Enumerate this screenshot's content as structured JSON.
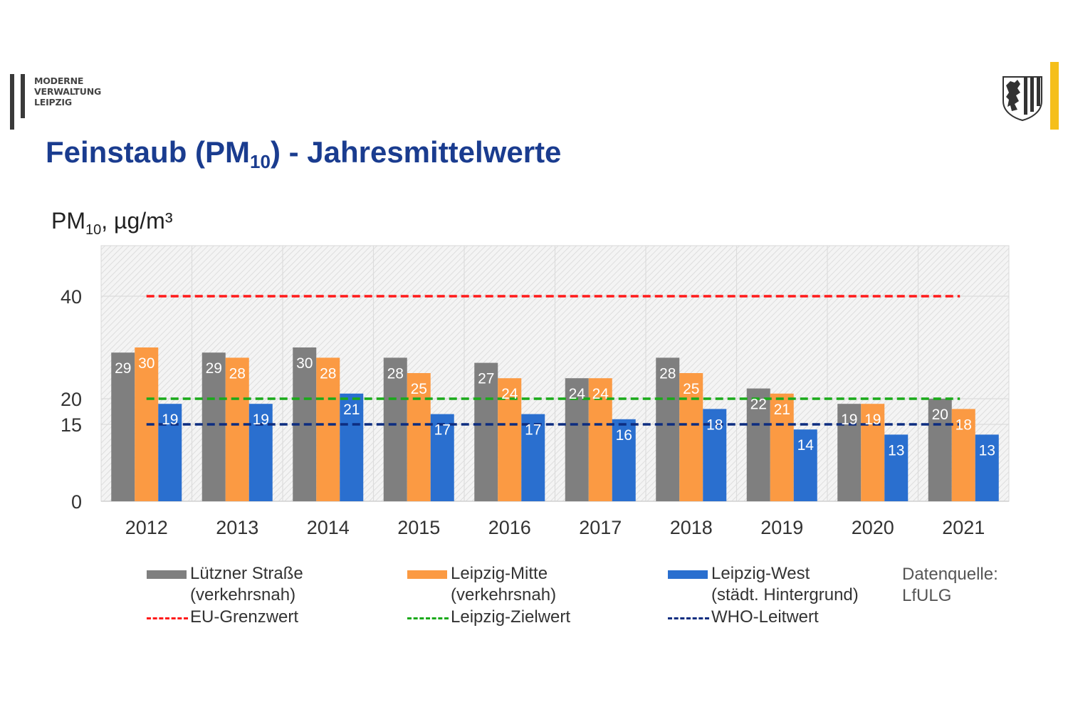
{
  "logo": {
    "lines": [
      "MODERNE",
      "VERWALTUNG",
      "LEIPZIG"
    ]
  },
  "crest_icon": "leipzig-coat-of-arms-icon",
  "title": {
    "prefix": "Feinstaub (PM",
    "sub": "10",
    "suffix": ") - Jahresmittelwerte"
  },
  "ylabel": {
    "prefix": "PM",
    "sub": "10",
    "suffix": ", µg/m³"
  },
  "colors": {
    "luetzner": "#7f7f7f",
    "mitte": "#fb9a43",
    "west": "#2a6fcf",
    "eu": "#ff1a1a",
    "ziel": "#1aaa1a",
    "who": "#0d2d80",
    "title": "#1a3c8f",
    "accent_yellow": "#f5bf1a"
  },
  "chart_data": {
    "type": "bar",
    "title": "Feinstaub (PM10) - Jahresmittelwerte",
    "xlabel": "",
    "ylabel": "PM10, µg/m³",
    "ylim": [
      0,
      50
    ],
    "yticks": [
      0,
      15,
      20,
      40
    ],
    "categories": [
      "2012",
      "2013",
      "2014",
      "2015",
      "2016",
      "2017",
      "2018",
      "2019",
      "2020",
      "2021"
    ],
    "series": [
      {
        "name": "Lützner Straße (verkehrsnah)",
        "key": "luetzner",
        "values": [
          29,
          29,
          30,
          28,
          27,
          24,
          28,
          22,
          19,
          20
        ]
      },
      {
        "name": "Leipzig-Mitte (verkehrsnah)",
        "key": "mitte",
        "values": [
          30,
          28,
          28,
          25,
          24,
          24,
          25,
          21,
          19,
          18
        ]
      },
      {
        "name": "Leipzig-West (städt. Hintergrund)",
        "key": "west",
        "values": [
          19,
          19,
          21,
          17,
          17,
          16,
          18,
          14,
          13,
          13
        ]
      }
    ],
    "reference_lines": [
      {
        "name": "EU-Grenzwert",
        "key": "eu",
        "value": 40
      },
      {
        "name": "Leipzig-Zielwert",
        "key": "ziel",
        "value": 20
      },
      {
        "name": "WHO-Leitwert",
        "key": "who",
        "value": 15
      }
    ],
    "grid": true,
    "legend": "bottom"
  },
  "legend": {
    "luetzner": {
      "line1": "Lützner Straße",
      "line2": "(verkehrsnah)"
    },
    "mitte": {
      "line1": "Leipzig-Mitte",
      "line2": "(verkehrsnah)"
    },
    "west": {
      "line1": "Leipzig-West",
      "line2": "(städt. Hintergrund)"
    },
    "eu": "EU-Grenzwert",
    "ziel": "Leipzig-Zielwert",
    "who": "WHO-Leitwert"
  },
  "source": {
    "line1": "Datenquelle:",
    "line2": "LfULG"
  }
}
